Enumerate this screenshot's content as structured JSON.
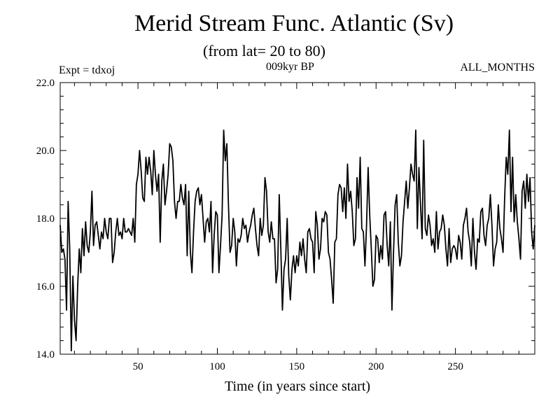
{
  "chart_data": {
    "type": "line",
    "title": "Merid Stream Func. Atlantic (Sv)",
    "subtitle": "(from lat= 20 to 80)",
    "left_label": "Expt = tdxoj",
    "center_label": "009kyr BP",
    "right_label": "ALL_MONTHS",
    "xlabel": "Time (in years since start)",
    "ylabel": "",
    "xlim": [
      1,
      300
    ],
    "ylim": [
      14.0,
      22.0
    ],
    "x_ticks": [
      50,
      100,
      150,
      200,
      250
    ],
    "x_tick_labels": [
      "50",
      "100",
      "150",
      "200",
      "250"
    ],
    "y_ticks": [
      14.0,
      16.0,
      18.0,
      20.0,
      22.0
    ],
    "y_tick_labels": [
      "14.0",
      "16.0",
      "18.0",
      "20.0",
      "22.0"
    ],
    "grid": false,
    "series": [
      {
        "color": "#000000",
        "x_start": 1,
        "x_step": 1,
        "values": [
          17.8,
          17.0,
          17.1,
          16.8,
          15.3,
          18.5,
          17.1,
          14.1,
          16.3,
          15.0,
          14.4,
          16.0,
          17.1,
          16.4,
          17.7,
          16.9,
          17.9,
          17.2,
          17.0,
          17.6,
          18.8,
          17.2,
          17.8,
          17.9,
          17.5,
          17.1,
          17.6,
          17.4,
          18.0,
          17.6,
          17.4,
          18.0,
          18.0,
          16.7,
          17.0,
          17.6,
          18.0,
          17.5,
          17.6,
          17.4,
          18.0,
          17.6,
          17.6,
          17.7,
          17.6,
          17.5,
          18.0,
          17.3,
          19.0,
          19.3,
          20.0,
          19.4,
          18.6,
          18.5,
          19.8,
          19.3,
          19.8,
          19.4,
          18.7,
          20.0,
          19.3,
          18.8,
          19.3,
          17.3,
          19.1,
          19.6,
          18.4,
          18.8,
          19.3,
          20.2,
          20.1,
          19.7,
          18.5,
          18.0,
          18.5,
          18.5,
          19.0,
          18.6,
          18.4,
          19.0,
          16.9,
          18.8,
          17.0,
          16.4,
          17.6,
          18.5,
          18.8,
          18.9,
          18.4,
          18.7,
          18.0,
          17.3,
          17.9,
          18.0,
          17.6,
          18.5,
          16.4,
          17.5,
          18.2,
          18.1,
          16.4,
          17.2,
          18.1,
          20.6,
          19.7,
          20.2,
          18.4,
          17.0,
          17.2,
          18.0,
          17.6,
          16.6,
          17.4,
          17.3,
          17.5,
          18.0,
          17.7,
          17.8,
          17.3,
          17.6,
          17.8,
          18.1,
          18.3,
          17.7,
          17.2,
          16.9,
          18.0,
          17.5,
          17.8,
          19.2,
          18.8,
          17.6,
          17.3,
          17.9,
          17.4,
          17.4,
          16.1,
          16.5,
          18.7,
          17.1,
          15.3,
          16.5,
          16.8,
          18.0,
          16.3,
          15.6,
          16.5,
          16.9,
          16.4,
          16.9,
          16.6,
          17.3,
          16.9,
          17.4,
          16.8,
          16.4,
          17.6,
          17.7,
          17.4,
          17.3,
          16.4,
          18.2,
          17.8,
          16.8,
          17.1,
          18.0,
          17.9,
          18.2,
          18.1,
          17.0,
          16.8,
          16.2,
          15.5,
          17.3,
          17.4,
          18.7,
          19.0,
          18.9,
          18.2,
          18.9,
          18.0,
          19.6,
          18.5,
          18.8,
          18.2,
          17.2,
          17.4,
          19.2,
          18.3,
          19.8,
          17.7,
          17.6,
          16.6,
          17.8,
          19.5,
          18.1,
          17.1,
          16.0,
          16.2,
          17.5,
          17.4,
          16.7,
          17.2,
          16.8,
          18.1,
          18.2,
          17.2,
          16.6,
          17.9,
          15.3,
          17.0,
          18.4,
          18.7,
          17.3,
          16.6,
          16.9,
          17.9,
          18.5,
          19.1,
          18.3,
          18.9,
          19.6,
          19.3,
          19.1,
          20.6,
          17.7,
          19.5,
          18.4,
          17.4,
          20.3,
          17.7,
          17.5,
          18.1,
          17.8,
          17.2,
          17.4,
          17.0,
          18.2,
          17.1,
          17.6,
          17.7,
          18.1,
          17.8,
          17.1,
          16.6,
          17.7,
          16.7,
          17.1,
          17.2,
          17.1,
          16.8,
          17.5,
          17.3,
          16.8,
          17.8,
          18.0,
          18.3,
          17.6,
          17.3,
          16.6,
          18.0,
          17.0,
          16.5,
          17.4,
          17.3,
          18.2,
          18.3,
          17.5,
          17.2,
          17.8,
          18.0,
          18.7,
          17.8,
          16.6,
          17.1,
          17.3,
          18.4,
          17.7,
          17.4,
          17.0,
          18.6,
          19.8,
          19.3,
          20.6,
          18.2,
          19.8,
          17.9,
          18.7,
          17.9,
          17.4,
          16.8,
          18.8,
          19.1,
          18.3,
          19.3,
          18.5,
          19.2,
          17.6,
          17.1,
          17.8
        ]
      }
    ]
  }
}
